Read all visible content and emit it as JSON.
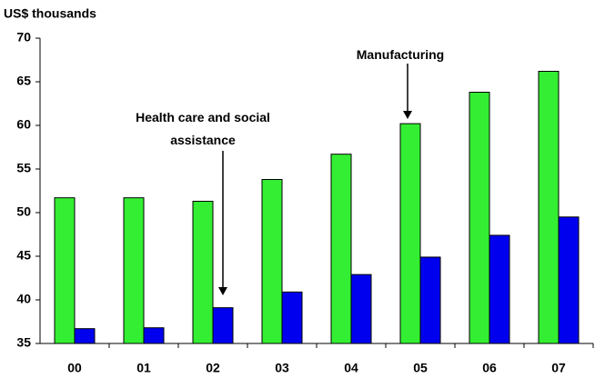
{
  "chart_data": {
    "type": "bar",
    "y_axis_label": "US$ thousands",
    "categories": [
      "00",
      "01",
      "02",
      "03",
      "04",
      "05",
      "06",
      "07"
    ],
    "series": [
      {
        "name": "Manufacturing",
        "color": "#33ee33",
        "values": [
          51.7,
          51.7,
          51.3,
          53.8,
          56.7,
          60.2,
          63.8,
          66.2
        ]
      },
      {
        "name": "Health care and social assistance",
        "color": "#0000ee",
        "values": [
          36.7,
          36.8,
          39.1,
          40.9,
          42.9,
          44.9,
          47.4,
          49.5
        ]
      }
    ],
    "ylim": [
      35,
      70
    ],
    "yticks": [
      35,
      40,
      45,
      50,
      55,
      60,
      65,
      70
    ],
    "grid": false
  }
}
